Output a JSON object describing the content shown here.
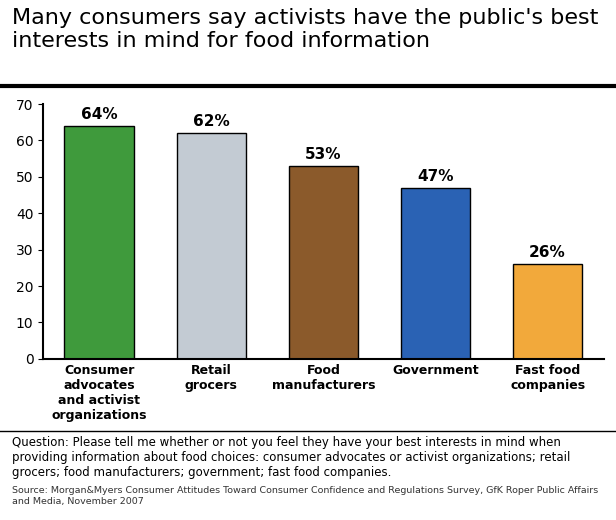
{
  "chart_data": {
    "type": "bar",
    "title": "Many consumers say activists have the public's best interests in mind for food information",
    "categories": [
      "Consumer\nadvocates\nand activist\norganizations",
      "Retail\ngrocers",
      "Food\nmanufacturers",
      "Government",
      "Fast food\ncompanies"
    ],
    "values": [
      64,
      62,
      53,
      47,
      26
    ],
    "value_labels": [
      "64%",
      "62%",
      "53%",
      "47%",
      "26%"
    ],
    "data_labels": true,
    "colors": [
      "#3f9a3c",
      "#c3cbd3",
      "#8b5a2b",
      "#2a62b4",
      "#f2a93b"
    ],
    "ylim": [
      0,
      70
    ],
    "yticks": [
      0,
      10,
      20,
      30,
      40,
      50,
      60,
      70
    ],
    "grid": false,
    "question": "Question: Please tell me whether or not you feel they have your best interests in mind when providing information about food choices: consumer advocates or activist organizations; retail grocers; food manufacturers; government; fast food companies.",
    "source": "Source: Morgan&Myers Consumer Attitudes Toward Consumer Confidence and Regulations Survey, GfK Roper Public Affairs and Media, November 2007"
  }
}
